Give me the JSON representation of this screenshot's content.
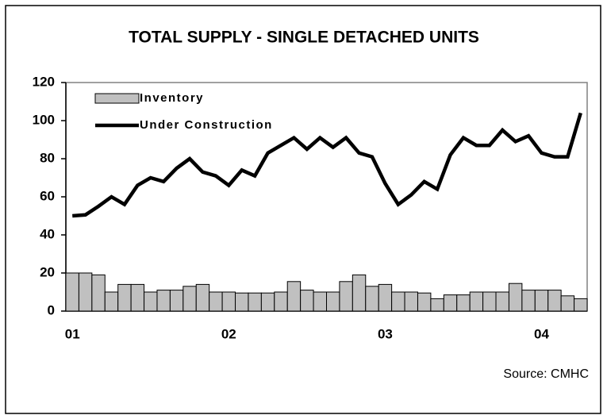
{
  "chart_data": {
    "type": "bar_line",
    "title": "TOTAL SUPPLY - SINGLE DETACHED UNITS",
    "source": "Source:  CMHC",
    "categories": [
      "01",
      null,
      null,
      null,
      null,
      null,
      null,
      null,
      null,
      null,
      null,
      null,
      "02",
      null,
      null,
      null,
      null,
      null,
      null,
      null,
      null,
      null,
      null,
      null,
      "03",
      null,
      null,
      null,
      null,
      null,
      null,
      null,
      null,
      null,
      null,
      null,
      "04",
      null,
      null,
      null
    ],
    "series": [
      {
        "name": "Inventory",
        "type": "bar",
        "color": "#c0c0c0",
        "values": [
          20,
          20,
          19,
          10,
          14,
          14,
          10,
          11,
          11,
          13,
          14,
          10,
          10,
          9.5,
          9.5,
          9.5,
          10,
          15.5,
          11,
          10,
          10,
          15.5,
          19,
          13,
          14,
          10,
          10,
          9.5,
          6.5,
          8.5,
          8.5,
          10,
          10,
          10,
          14.5,
          11,
          11,
          11,
          8,
          6.5
        ]
      },
      {
        "name": "Under Construction",
        "type": "line",
        "color": "#000000",
        "values": [
          50,
          50.5,
          55,
          60,
          56,
          66,
          70,
          68,
          75,
          80,
          73,
          71,
          66,
          74,
          71,
          83,
          87,
          91,
          85,
          91,
          86,
          91,
          83,
          81,
          67,
          56,
          61,
          68,
          64,
          82,
          91,
          87,
          87,
          95,
          89,
          92,
          83,
          81,
          81,
          104
        ]
      }
    ],
    "ylim": [
      0,
      120
    ],
    "yticks": [
      0,
      20,
      40,
      60,
      80,
      100,
      120
    ]
  }
}
